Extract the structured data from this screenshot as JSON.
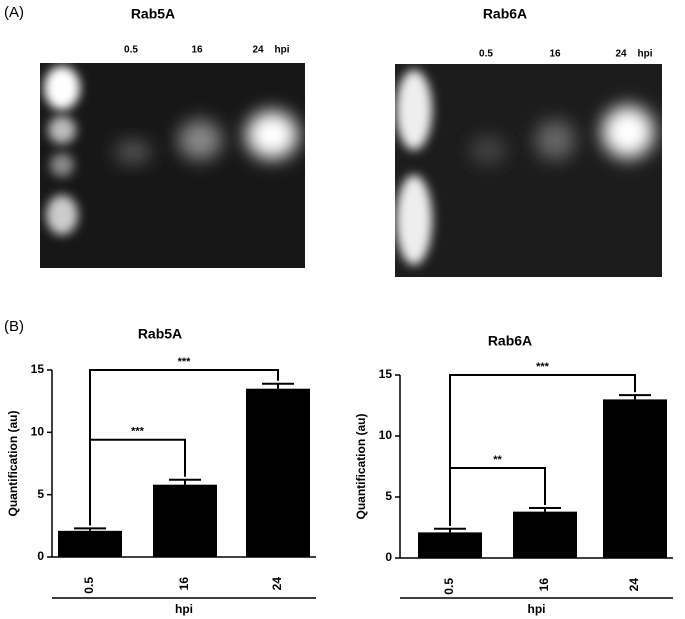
{
  "panel_labels": [
    "(A)",
    "(B)"
  ],
  "gels": [
    {
      "title": "Rab5A",
      "lanes": [
        "0.5",
        "16",
        "24"
      ],
      "unit": "hpi"
    },
    {
      "title": "Rab6A",
      "lanes": [
        "0.5",
        "16",
        "24"
      ],
      "unit": "hpi"
    }
  ],
  "chart_data": [
    {
      "type": "bar",
      "title": "Rab5A",
      "y_label": "Quantification (au)",
      "x_label": "hpi",
      "categories": [
        "0.5",
        "16",
        "24"
      ],
      "values": [
        2.1,
        5.8,
        13.5
      ],
      "errors": [
        0.2,
        0.4,
        0.4
      ],
      "color": "#000000",
      "ylim": [
        0,
        15
      ],
      "yticks": [
        0,
        5,
        10,
        15
      ],
      "comparisons": [
        {
          "groups": [
            "0.5",
            "24"
          ],
          "label": "***"
        },
        {
          "groups": [
            "0.5",
            "16"
          ],
          "label": "***"
        }
      ]
    },
    {
      "type": "bar",
      "title": "Rab6A",
      "y_label": "Quantification (au)",
      "x_label": "hpi",
      "categories": [
        "0.5",
        "16",
        "24"
      ],
      "values": [
        2.1,
        3.8,
        13.0
      ],
      "errors": [
        0.3,
        0.3,
        0.35
      ],
      "color": "#000000",
      "ylim": [
        0,
        15
      ],
      "yticks": [
        0,
        5,
        10,
        15
      ],
      "comparisons": [
        {
          "groups": [
            "0.5",
            "24"
          ],
          "label": "***"
        },
        {
          "groups": [
            "0.5",
            "16"
          ],
          "label": "**"
        }
      ]
    }
  ]
}
